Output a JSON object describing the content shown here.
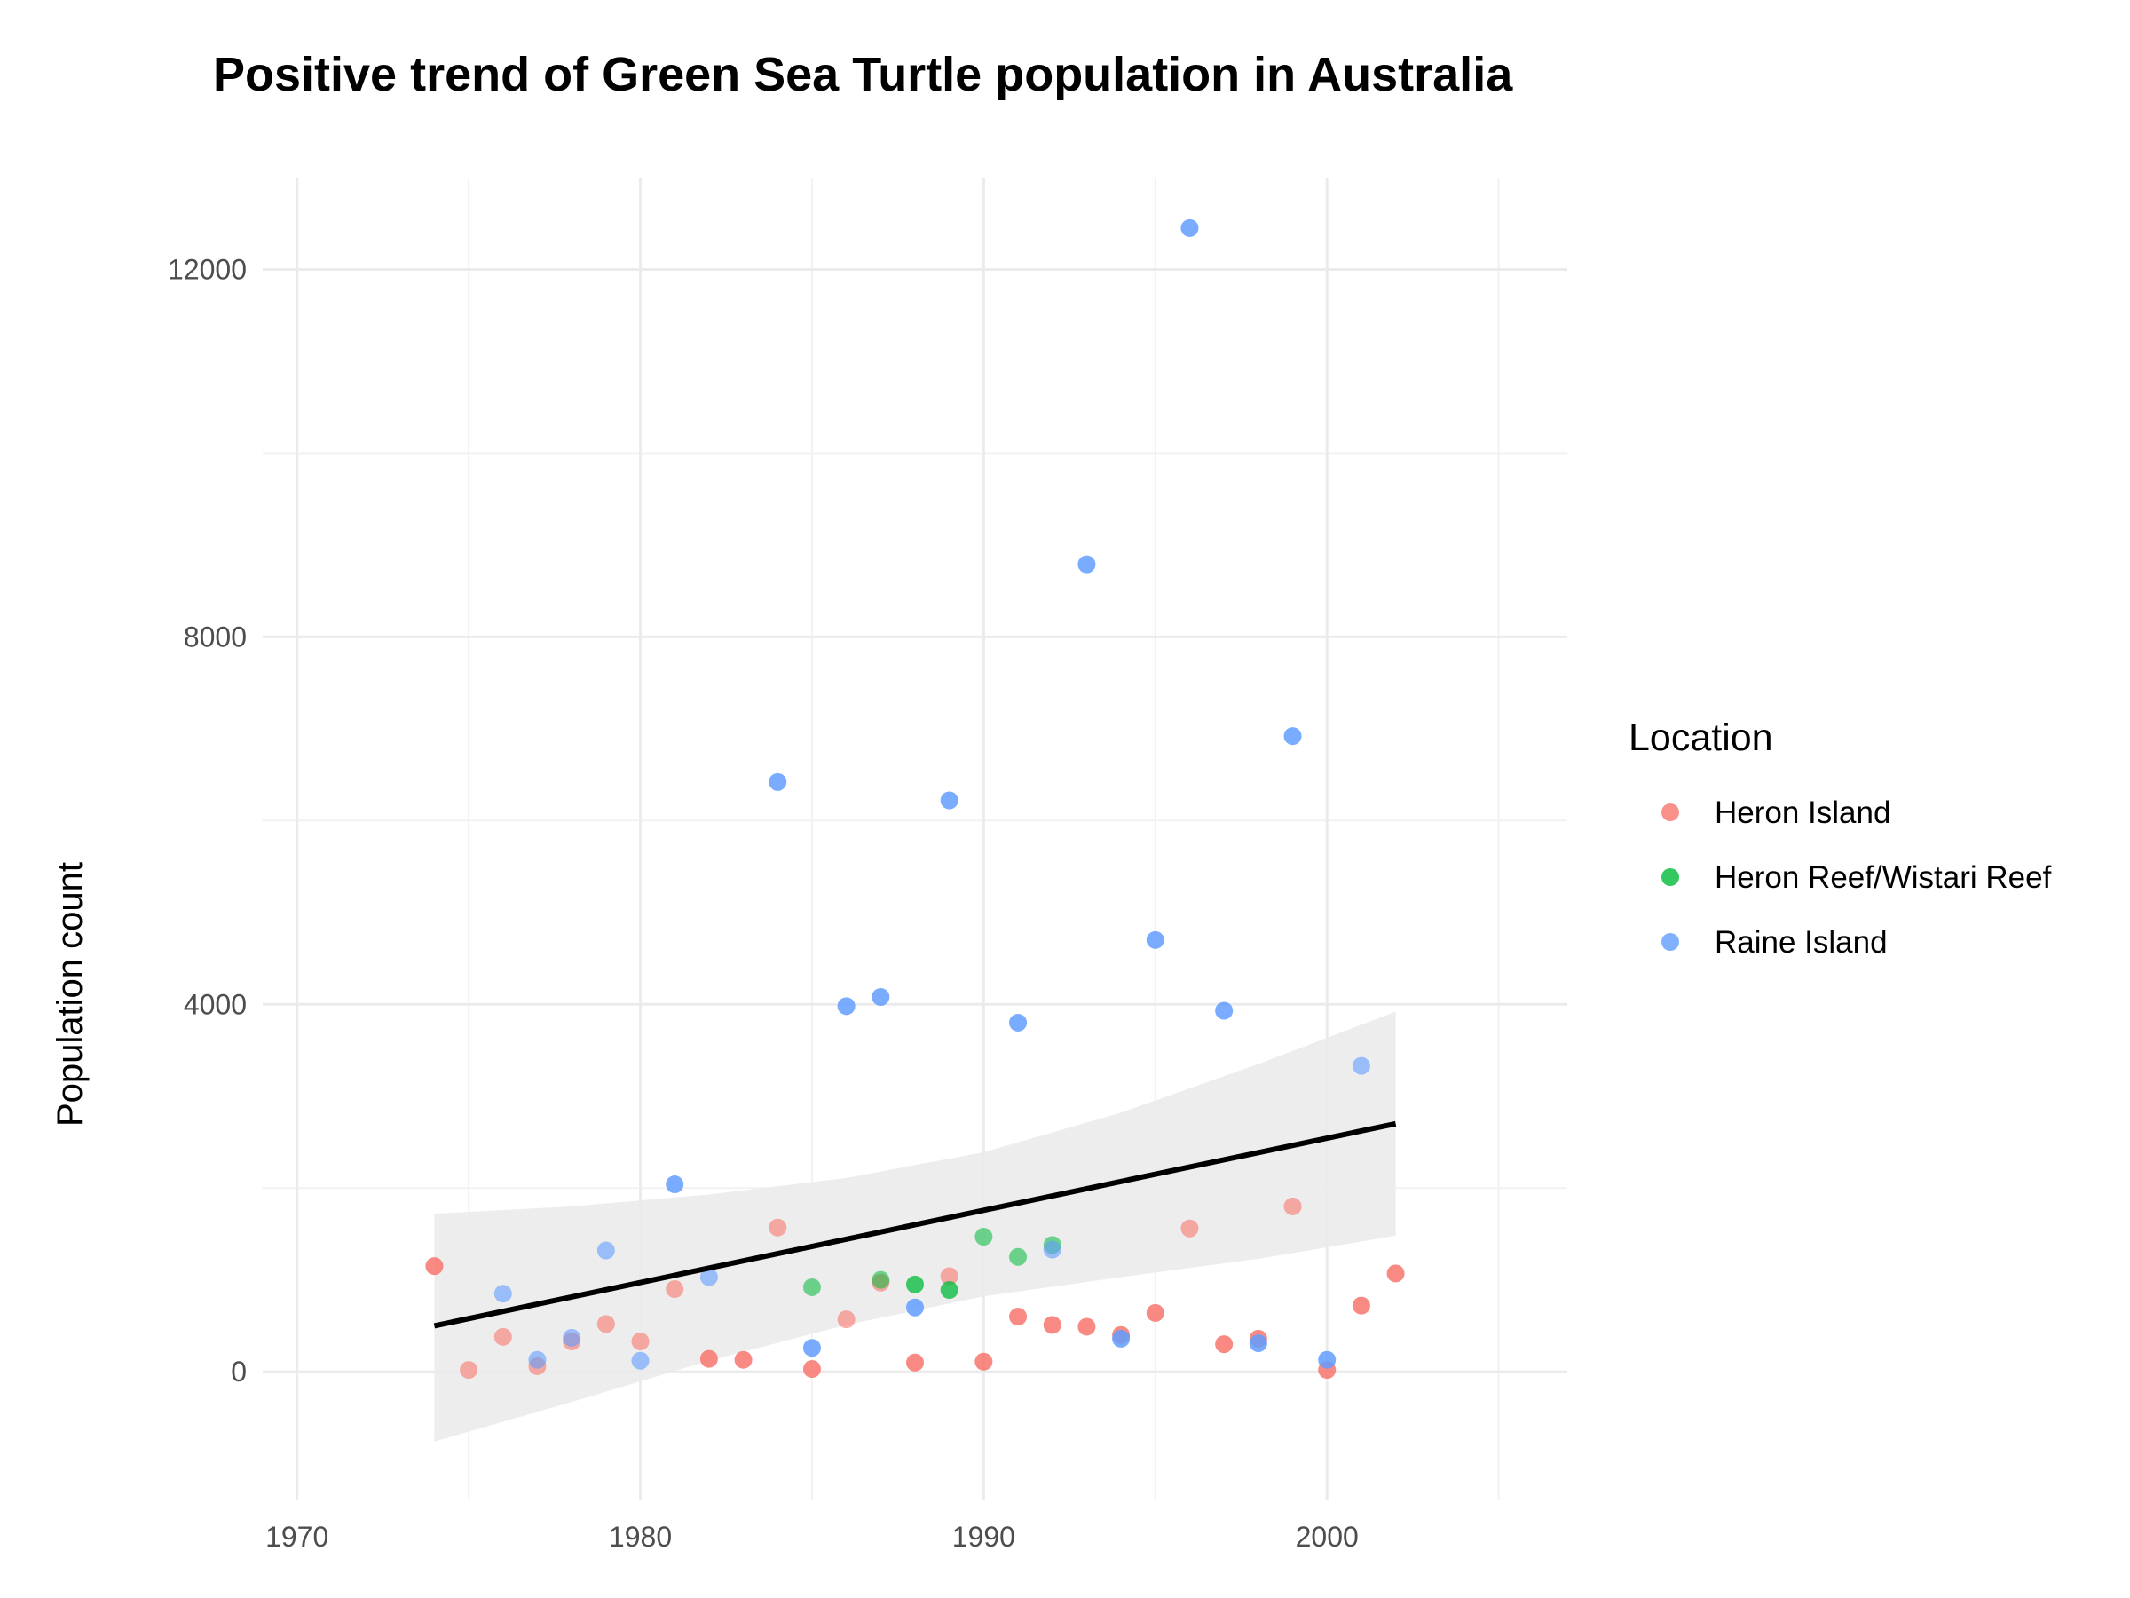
{
  "chart_data": {
    "type": "scatter",
    "title": "Positive trend of Green Sea Turtle population in Australia",
    "xlabel": "",
    "ylabel": "Population count",
    "xlim": [
      1969,
      2007
    ],
    "ylim": [
      -1400,
      13000
    ],
    "x_ticks": [
      1970,
      1980,
      1990,
      2000
    ],
    "y_ticks": [
      0,
      4000,
      8000,
      12000
    ],
    "grid": true,
    "legend": {
      "title": "Location",
      "position": "right"
    },
    "series": [
      {
        "name": "Heron Island",
        "color": "#F8766D",
        "points": [
          {
            "x": 1974,
            "y": 1150,
            "alpha": 0.85
          },
          {
            "x": 1975,
            "y": 20,
            "alpha": 0.6
          },
          {
            "x": 1976,
            "y": 380,
            "alpha": 0.6
          },
          {
            "x": 1977,
            "y": 60,
            "alpha": 0.6
          },
          {
            "x": 1978,
            "y": 330,
            "alpha": 0.6
          },
          {
            "x": 1979,
            "y": 520,
            "alpha": 0.6
          },
          {
            "x": 1980,
            "y": 330,
            "alpha": 0.6
          },
          {
            "x": 1981,
            "y": 900,
            "alpha": 0.6
          },
          {
            "x": 1982,
            "y": 140,
            "alpha": 0.85
          },
          {
            "x": 1983,
            "y": 130,
            "alpha": 0.85
          },
          {
            "x": 1984,
            "y": 1570,
            "alpha": 0.6
          },
          {
            "x": 1985,
            "y": 30,
            "alpha": 0.85
          },
          {
            "x": 1986,
            "y": 570,
            "alpha": 0.6
          },
          {
            "x": 1987,
            "y": 970,
            "alpha": 0.6
          },
          {
            "x": 1988,
            "y": 100,
            "alpha": 0.85
          },
          {
            "x": 1989,
            "y": 1040,
            "alpha": 0.6
          },
          {
            "x": 1990,
            "y": 110,
            "alpha": 0.85
          },
          {
            "x": 1991,
            "y": 600,
            "alpha": 0.85
          },
          {
            "x": 1992,
            "y": 510,
            "alpha": 0.85
          },
          {
            "x": 1993,
            "y": 490,
            "alpha": 0.85
          },
          {
            "x": 1994,
            "y": 400,
            "alpha": 0.85
          },
          {
            "x": 1995,
            "y": 640,
            "alpha": 0.85
          },
          {
            "x": 1996,
            "y": 1560,
            "alpha": 0.6
          },
          {
            "x": 1997,
            "y": 300,
            "alpha": 0.85
          },
          {
            "x": 1998,
            "y": 360,
            "alpha": 0.85
          },
          {
            "x": 1999,
            "y": 1800,
            "alpha": 0.6
          },
          {
            "x": 2000,
            "y": 20,
            "alpha": 0.85
          },
          {
            "x": 2001,
            "y": 720,
            "alpha": 0.85
          },
          {
            "x": 2002,
            "y": 1070,
            "alpha": 0.85
          }
        ]
      },
      {
        "name": "Heron Reef/Wistari Reef",
        "color": "#00BA38",
        "points": [
          {
            "x": 1985,
            "y": 920,
            "alpha": 0.55
          },
          {
            "x": 1987,
            "y": 1000,
            "alpha": 0.55
          },
          {
            "x": 1988,
            "y": 950,
            "alpha": 0.75
          },
          {
            "x": 1989,
            "y": 890,
            "alpha": 0.75
          },
          {
            "x": 1990,
            "y": 1470,
            "alpha": 0.55
          },
          {
            "x": 1991,
            "y": 1250,
            "alpha": 0.55
          },
          {
            "x": 1992,
            "y": 1380,
            "alpha": 0.55
          }
        ]
      },
      {
        "name": "Raine Island",
        "color": "#619CFF",
        "points": [
          {
            "x": 1976,
            "y": 850,
            "alpha": 0.6
          },
          {
            "x": 1977,
            "y": 130,
            "alpha": 0.6
          },
          {
            "x": 1978,
            "y": 370,
            "alpha": 0.6
          },
          {
            "x": 1979,
            "y": 1320,
            "alpha": 0.6
          },
          {
            "x": 1980,
            "y": 120,
            "alpha": 0.6
          },
          {
            "x": 1981,
            "y": 2040,
            "alpha": 0.85
          },
          {
            "x": 1982,
            "y": 1030,
            "alpha": 0.6
          },
          {
            "x": 1984,
            "y": 6420,
            "alpha": 0.85
          },
          {
            "x": 1985,
            "y": 260,
            "alpha": 0.85
          },
          {
            "x": 1986,
            "y": 3980,
            "alpha": 0.85
          },
          {
            "x": 1987,
            "y": 4080,
            "alpha": 0.85
          },
          {
            "x": 1988,
            "y": 700,
            "alpha": 0.85
          },
          {
            "x": 1989,
            "y": 6220,
            "alpha": 0.85
          },
          {
            "x": 1991,
            "y": 3800,
            "alpha": 0.85
          },
          {
            "x": 1992,
            "y": 1330,
            "alpha": 0.6
          },
          {
            "x": 1993,
            "y": 8790,
            "alpha": 0.85
          },
          {
            "x": 1994,
            "y": 360,
            "alpha": 0.85
          },
          {
            "x": 1995,
            "y": 4700,
            "alpha": 0.85
          },
          {
            "x": 1996,
            "y": 12450,
            "alpha": 0.85
          },
          {
            "x": 1997,
            "y": 3930,
            "alpha": 0.85
          },
          {
            "x": 1998,
            "y": 310,
            "alpha": 0.85
          },
          {
            "x": 1999,
            "y": 6920,
            "alpha": 0.85
          },
          {
            "x": 2000,
            "y": 130,
            "alpha": 0.85
          },
          {
            "x": 2001,
            "y": 3330,
            "alpha": 0.6
          }
        ]
      }
    ],
    "trend_line": {
      "color": "#000000",
      "x": [
        1974,
        2002
      ],
      "y": [
        500,
        2700
      ],
      "ci_color": "#ebebeb",
      "ci_x": [
        1974,
        1978,
        1982,
        1986,
        1990,
        1994,
        1998,
        2002
      ],
      "ci_upper": [
        1720,
        1800,
        1930,
        2110,
        2390,
        2820,
        3350,
        3920
      ],
      "ci_lower": [
        -760,
        -330,
        120,
        510,
        820,
        1030,
        1230,
        1480
      ]
    }
  }
}
